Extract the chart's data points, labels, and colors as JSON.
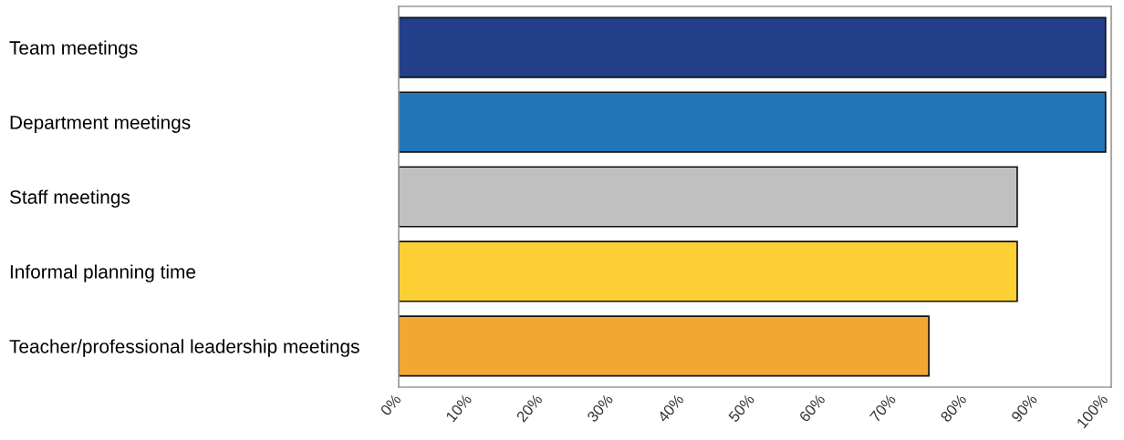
{
  "chart_data": {
    "type": "bar",
    "orientation": "horizontal",
    "categories": [
      "Team meetings",
      "Department meetings",
      "Staff meetings",
      "Informal planning time",
      "Teacher/professional leadership meetings"
    ],
    "values": [
      100,
      100,
      87.5,
      87.5,
      75
    ],
    "colors": [
      "#233f8a",
      "#2276b8",
      "#c0c0c0",
      "#fcd034",
      "#f2a733"
    ],
    "xlim": [
      0,
      100.8
    ],
    "xticks": [
      {
        "value": 0,
        "label": "0%"
      },
      {
        "value": 10,
        "label": "10%"
      },
      {
        "value": 20,
        "label": "20%"
      },
      {
        "value": 30,
        "label": "30%"
      },
      {
        "value": 40,
        "label": "40%"
      },
      {
        "value": 50,
        "label": "50%"
      },
      {
        "value": 60,
        "label": "60%"
      },
      {
        "value": 70,
        "label": "70%"
      },
      {
        "value": 80,
        "label": "80%"
      },
      {
        "value": 90,
        "label": "90%"
      },
      {
        "value": 100,
        "label": "100%"
      }
    ],
    "grid": false
  }
}
